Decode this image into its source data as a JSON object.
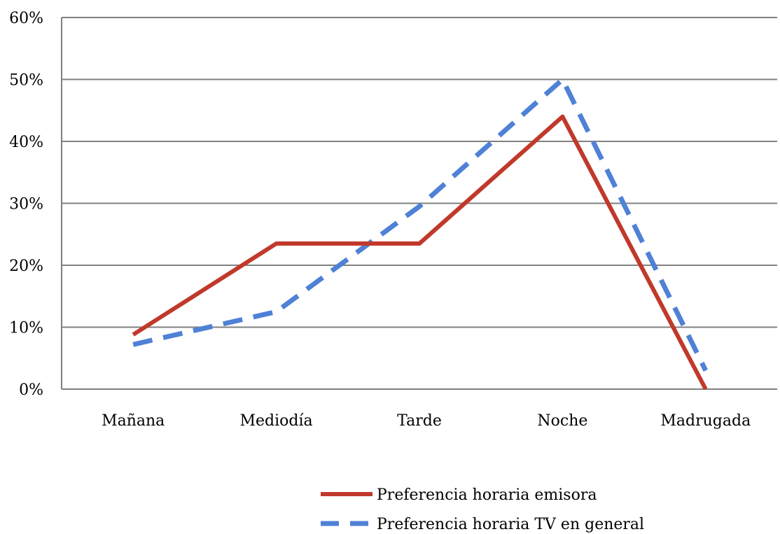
{
  "chart_data": {
    "type": "line",
    "title": "",
    "xlabel": "",
    "ylabel": "",
    "categories": [
      "Mañana",
      "Mediodía",
      "Tarde",
      "Noche",
      "Madrugada"
    ],
    "ylim": [
      0,
      0.6
    ],
    "yticks": [
      0,
      0.1,
      0.2,
      0.3,
      0.4,
      0.5,
      0.6
    ],
    "ytick_labels": [
      "0%",
      "10%",
      "20%",
      "30%",
      "40%",
      "50%",
      "60%"
    ],
    "grid": true,
    "legend_position": "bottom",
    "series": [
      {
        "name": "Preferencia horaria emisora",
        "values": [
          0.088,
          0.235,
          0.235,
          0.44,
          0.0
        ],
        "color": "#C0392B",
        "style": "solid"
      },
      {
        "name": "Preferencia horaria TV en general",
        "values": [
          0.072,
          0.125,
          0.295,
          0.5,
          0.03
        ],
        "color": "#4F81D6",
        "style": "dashed"
      }
    ]
  }
}
